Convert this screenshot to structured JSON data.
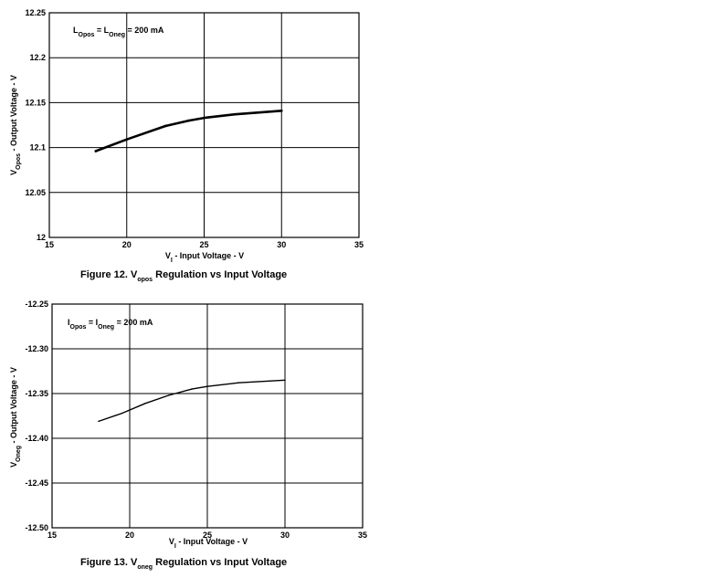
{
  "chart_data": [
    {
      "type": "line",
      "xlim": [
        15,
        35
      ],
      "ylim": [
        12,
        12.25
      ],
      "x_ticks": [
        "15",
        "20",
        "25",
        "30",
        "35"
      ],
      "y_ticks": [
        "12",
        "12.05",
        "12.1",
        "12.15",
        "12.2",
        "12.25"
      ],
      "grid": true,
      "x": [
        18,
        20,
        22.5,
        24,
        25,
        27,
        30
      ],
      "y": [
        12.096,
        12.109,
        12.124,
        12.13,
        12.133,
        12.137,
        12.141
      ],
      "stroke_width": 2.6,
      "ylabel": {
        "main": "V",
        "sub": "Opos",
        "rest": " - Output Voltage - V"
      },
      "xlabel": {
        "main": "V",
        "sub": "I",
        "rest": " - Input Voltage - V"
      },
      "annotation": {
        "p1": "L",
        "s1": "Opos",
        "p2": " = L",
        "s2": "Oneg",
        "p3": " = 200 mA"
      },
      "caption": {
        "main": "Figure 12. V",
        "sub": "opos",
        "rest": " Regulation vs Input Voltage"
      }
    },
    {
      "type": "line",
      "xlim": [
        15,
        35
      ],
      "ylim": [
        -12.5,
        -12.25
      ],
      "x_ticks": [
        "15",
        "20",
        "25",
        "30",
        "35"
      ],
      "y_ticks": [
        "-12.50",
        "-12.45",
        "-12.40",
        "-12.35",
        "-12.30",
        "-12.25"
      ],
      "grid": true,
      "x": [
        18,
        19.5,
        21,
        22.5,
        24,
        25,
        27,
        30
      ],
      "y": [
        -12.381,
        -12.372,
        -12.361,
        -12.352,
        -12.345,
        -12.342,
        -12.338,
        -12.335
      ],
      "stroke_width": 1.4,
      "ylabel": {
        "main": "V",
        "sub": "Oneg",
        "rest": " - Output Voltage - V"
      },
      "xlabel": {
        "main": "V",
        "sub": "I",
        "rest": " - Input Voltage - V"
      },
      "annotation": {
        "p1": "I",
        "s1": "Opos",
        "p2": " = I",
        "s2": "Oneg",
        "p3": " = 200 mA"
      },
      "caption": {
        "main": "Figure 13. V",
        "sub": "oneg",
        "rest": " Regulation vs Input Voltage"
      }
    }
  ]
}
